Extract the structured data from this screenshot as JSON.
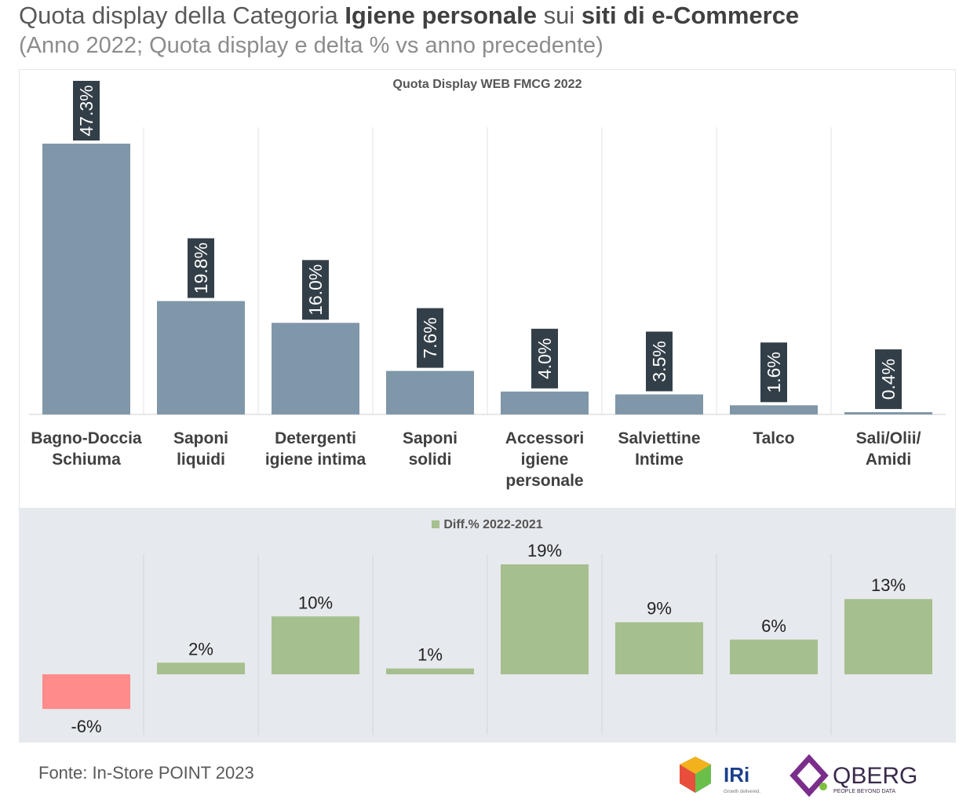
{
  "header": {
    "title_part1": "Quota display della Categoria ",
    "title_bold1": "Igiene personale",
    "title_part2": " sui ",
    "title_bold2": "siti di e-Commerce",
    "subtitle": "(Anno 2022; Quota display e delta %  vs anno precedente)"
  },
  "chart_data": [
    {
      "type": "bar",
      "title": "Quota Display WEB FMCG 2022",
      "categories": [
        [
          "Bagno-Doccia",
          "Schiuma"
        ],
        [
          "Saponi",
          "liquidi"
        ],
        [
          "Detergenti",
          "igiene intima"
        ],
        [
          "Saponi",
          "solidi"
        ],
        [
          "Accessori",
          "igiene",
          "personale"
        ],
        [
          "Salviettine",
          "Intime"
        ],
        [
          "Talco"
        ],
        [
          "Sali/Olii/",
          "Amidi"
        ]
      ],
      "values": [
        47.3,
        19.8,
        16.0,
        7.6,
        4.0,
        3.5,
        1.6,
        0.4
      ],
      "labels": [
        "47.3%",
        "19.8%",
        "16.0%",
        "7.6%",
        "4.0%",
        "3.5%",
        "1.6%",
        "0.4%"
      ],
      "ylim": [
        0,
        50
      ],
      "color": "#7f97a8",
      "label_bg": "#333f48"
    },
    {
      "type": "bar",
      "title": "Diff.% 2022-2021",
      "legend": "Diff.% 2022-2021",
      "values": [
        -6,
        2,
        10,
        1,
        19,
        9,
        6,
        13
      ],
      "labels": [
        "-6%",
        "2%",
        "10%",
        "1%",
        "19%",
        "9%",
        "6%",
        "13%"
      ],
      "positive_color": "#a6bf8e",
      "negative_color": "#ff8b8b"
    }
  ],
  "footer": {
    "source": "Fonte: In-Store POINT 2023",
    "logo_iri_text": "IRi",
    "logo_iri_tagline": "Growth delivered.",
    "logo_qberg_text": "QBERG",
    "logo_qberg_tagline": "PEOPLE BEYOND DATA"
  }
}
